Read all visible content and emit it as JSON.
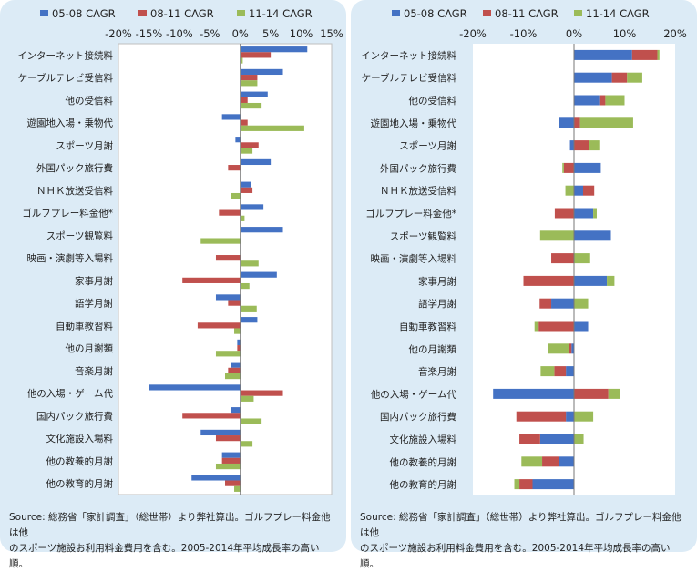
{
  "chart_data": [
    {
      "type": "bar",
      "orientation": "horizontal",
      "layout": "grouped",
      "categories": [
        "インターネット接続料",
        "ケーブルテレビ受信料",
        "他の受信料",
        "遊園地入場・乗物代",
        "スポーツ月謝",
        "外国パック旅行費",
        "ＮＨＫ放送受信料",
        "ゴルフプレー料金他*",
        "スポーツ観覧料",
        "映画・演劇等入場料",
        "家事月謝",
        "語学月謝",
        "自動車教習料",
        "他の月謝類",
        "音楽月謝",
        "他の入場・ゲーム代",
        "国内パック旅行費",
        "文化施設入場料",
        "他の教養的月謝",
        "他の教育的月謝"
      ],
      "series": [
        {
          "name": "05-08 CAGR",
          "color": "#4472c4",
          "values": [
            11,
            7,
            4.5,
            -3,
            -0.8,
            5,
            1.8,
            3.8,
            7,
            0,
            6,
            -4,
            2.8,
            -0.5,
            -1.5,
            -15,
            -1.5,
            -6.5,
            -3,
            -8
          ]
        },
        {
          "name": "08-11 CAGR",
          "color": "#c0504d",
          "values": [
            5,
            2.8,
            1.2,
            1.2,
            3,
            -2,
            2,
            -3.5,
            0,
            -4,
            -9.5,
            -2,
            -7,
            -0.5,
            -2,
            7,
            -9.5,
            -4,
            -3,
            -2.5
          ]
        },
        {
          "name": "11-14 CAGR",
          "color": "#9bbb59",
          "values": [
            0.4,
            2.8,
            3.5,
            10.5,
            2,
            0,
            -1.5,
            0.7,
            -6.5,
            3,
            1.5,
            2.7,
            -1,
            -4,
            -2.5,
            2.2,
            3.5,
            2,
            -4,
            -1
          ]
        }
      ],
      "xlim": [
        -20,
        15
      ],
      "xticks": [
        "-20%",
        "-15%",
        "-10%",
        "-5%",
        "0%",
        "5%",
        "10%",
        "15%"
      ],
      "legend_position": "top",
      "grid": false
    },
    {
      "type": "bar",
      "orientation": "horizontal",
      "layout": "stacked",
      "categories": [
        "インターネット接続料",
        "ケーブルテレビ受信料",
        "他の受信料",
        "遊園地入場・乗物代",
        "スポーツ月謝",
        "外国パック旅行費",
        "ＮＨＫ放送受信料",
        "ゴルフプレー料金他*",
        "スポーツ観覧料",
        "映画・演劇等入場料",
        "家事月謝",
        "語学月謝",
        "自動車教習料",
        "他の月謝類",
        "音楽月謝",
        "他の入場・ゲーム代",
        "国内パック旅行費",
        "文化施設入場料",
        "他の教養的月謝",
        "他の教育的月謝"
      ],
      "series": [
        {
          "name": "05-08 CAGR",
          "color": "#4472c4",
          "values": [
            11.5,
            7.5,
            5,
            -3,
            -0.8,
            5.3,
            1.8,
            3.8,
            7.3,
            0,
            6.5,
            -4.5,
            2.8,
            -0.5,
            -1.6,
            -16,
            -1.6,
            -6.7,
            -3,
            -8.2
          ]
        },
        {
          "name": "08-11 CAGR",
          "color": "#c0504d",
          "values": [
            5,
            3,
            1.2,
            1.2,
            3,
            -2,
            2.2,
            -3.8,
            0,
            -4.5,
            -10,
            -2.3,
            -7,
            -0.5,
            -2.3,
            6.8,
            -9.8,
            -4.1,
            -3.3,
            -2.6
          ]
        },
        {
          "name": "11-14 CAGR",
          "color": "#9bbb59",
          "values": [
            0.4,
            3,
            3.8,
            10.5,
            2,
            -0.3,
            -1.7,
            0.7,
            -6.7,
            3.2,
            1.5,
            2.8,
            -0.8,
            -4.2,
            -2.7,
            2.3,
            3.8,
            1.9,
            -4.1,
            -1
          ]
        }
      ],
      "xlim": [
        -20,
        20
      ],
      "xticks": [
        "-20%",
        "-10%",
        "0%",
        "10%",
        "20%"
      ],
      "legend_position": "top",
      "grid": false
    }
  ],
  "source_note": {
    "line1": "Source: 総務省「家計調査」（総世帯）より弊社算出。ゴルフプレー料金他は他",
    "line2": "のスポーツ施設お利用料金費用を含む。2005-2014年平均成長率の高い順。"
  }
}
